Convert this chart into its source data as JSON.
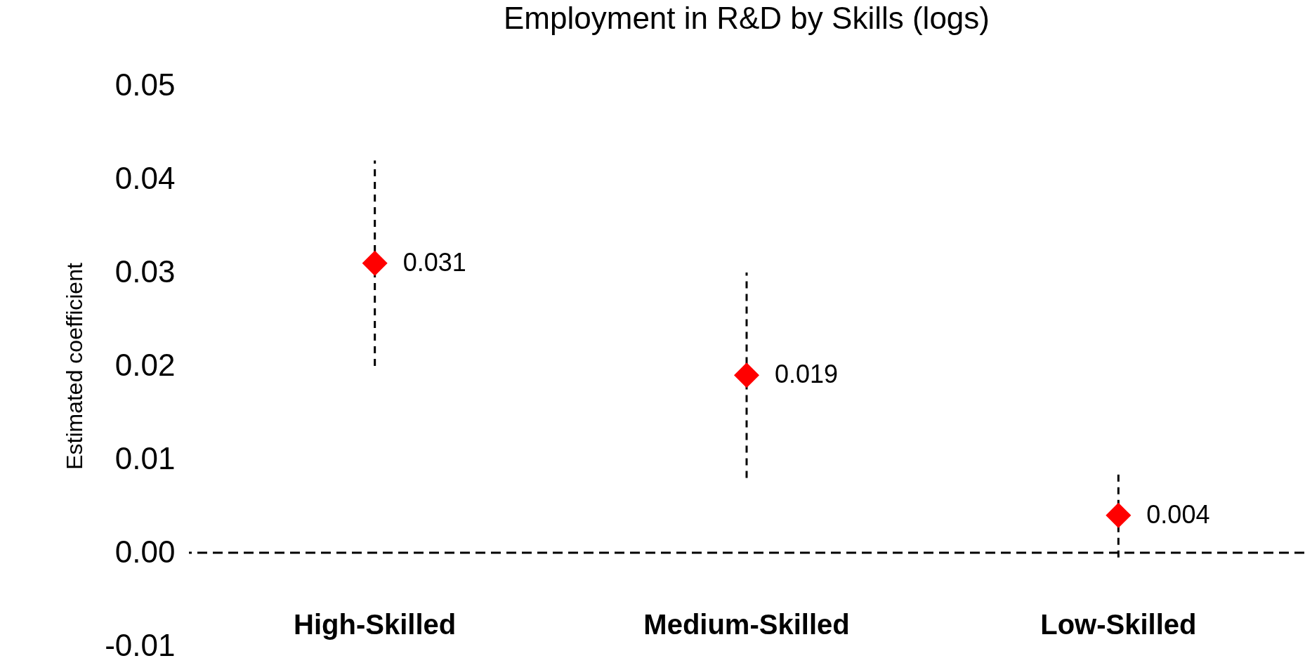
{
  "chart_data": {
    "type": "scatter",
    "title": "Employment in R&D by Skills (logs)",
    "ylabel": "Estimated coefficient",
    "categories": [
      "High-Skilled",
      "Medium-Skilled",
      "Low-Skilled"
    ],
    "series": [
      {
        "color": "#ff0000",
        "values": [
          0.031,
          0.019,
          0.004
        ],
        "errors": [
          [
            0.02,
            0.042
          ],
          [
            0.008,
            0.03
          ],
          [
            -0.0005,
            0.0085
          ]
        ]
      }
    ],
    "ylim": [
      -0.01,
      0.05
    ],
    "yticks": [
      -0.01,
      {
        "value": 0,
        "label": "0.00"
      },
      0.01,
      0.02,
      0.03,
      0.04,
      0.05
    ],
    "ref_lines": [
      {
        "axis": "y",
        "value": 0,
        "line_style": "dashed",
        "color": "#000000"
      }
    ],
    "marker": "diamond",
    "data_labels": true,
    "grid": false
  }
}
